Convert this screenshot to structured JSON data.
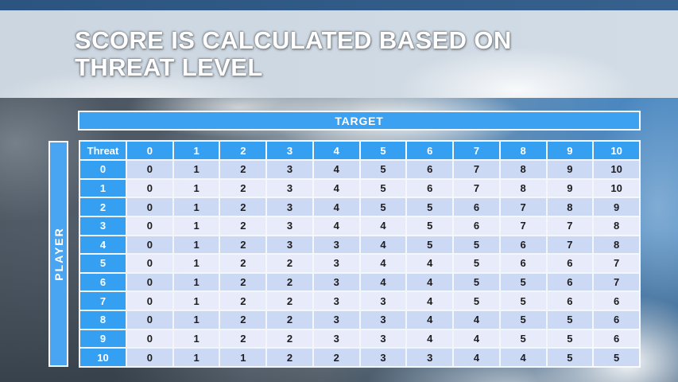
{
  "slide": {
    "title_line1": "SCORE IS CALCULATED BASED ON",
    "title_line2": "THREAT LEVEL"
  },
  "matrix": {
    "target_label": "TARGET",
    "player_label": "PLAYER",
    "corner_label": "Threat",
    "target_levels": [
      "0",
      "1",
      "2",
      "3",
      "4",
      "5",
      "6",
      "7",
      "8",
      "9",
      "10"
    ],
    "threat_levels": [
      "0",
      "1",
      "2",
      "3",
      "4",
      "5",
      "6",
      "7",
      "8",
      "9",
      "10"
    ],
    "scores": [
      [
        0,
        1,
        2,
        3,
        4,
        5,
        6,
        7,
        8,
        9,
        10
      ],
      [
        0,
        1,
        2,
        3,
        4,
        5,
        6,
        7,
        8,
        9,
        10
      ],
      [
        0,
        1,
        2,
        3,
        4,
        5,
        5,
        6,
        7,
        8,
        9
      ],
      [
        0,
        1,
        2,
        3,
        4,
        4,
        5,
        6,
        7,
        7,
        8
      ],
      [
        0,
        1,
        2,
        3,
        3,
        4,
        5,
        5,
        6,
        7,
        8
      ],
      [
        0,
        1,
        2,
        2,
        3,
        4,
        4,
        5,
        6,
        6,
        7
      ],
      [
        0,
        1,
        2,
        2,
        3,
        4,
        4,
        5,
        5,
        6,
        7
      ],
      [
        0,
        1,
        2,
        2,
        3,
        3,
        4,
        5,
        5,
        6,
        6
      ],
      [
        0,
        1,
        2,
        2,
        3,
        3,
        4,
        4,
        5,
        5,
        6
      ],
      [
        0,
        1,
        2,
        2,
        3,
        3,
        4,
        4,
        5,
        5,
        6
      ],
      [
        0,
        1,
        1,
        2,
        2,
        3,
        3,
        4,
        4,
        5,
        5
      ]
    ]
  },
  "colors": {
    "header_blue": "#35a0f2",
    "bar_blue": "#49a5f2",
    "row_even": "#ccd9f4",
    "row_odd": "#e7ebfa",
    "cell_text": "#1d1d20",
    "banner": "#cfd9e3",
    "top_strip": "#2f5a87"
  }
}
